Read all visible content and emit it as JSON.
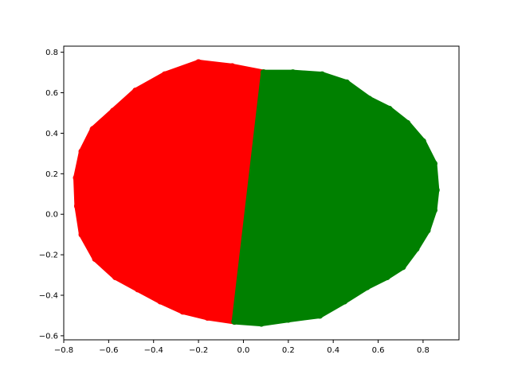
{
  "chart_data": {
    "type": "scatter",
    "title": "",
    "xlabel": "",
    "ylabel": "",
    "xlim": [
      -0.8,
      0.96
    ],
    "ylim": [
      -0.62,
      0.83
    ],
    "xticks": [
      -0.8,
      -0.6,
      -0.4,
      -0.2,
      0.0,
      0.2,
      0.4,
      0.6,
      0.8
    ],
    "xtick_labels": [
      "−0.8",
      "−0.6",
      "−0.4",
      "−0.2",
      "0.0",
      "0.2",
      "0.4",
      "0.6",
      "0.8"
    ],
    "yticks": [
      -0.6,
      -0.4,
      -0.2,
      0.0,
      0.2,
      0.4,
      0.6,
      0.8
    ],
    "ytick_labels": [
      "−0.6",
      "−0.4",
      "−0.2",
      "0.0",
      "0.2",
      "0.4",
      "0.6",
      "0.8"
    ],
    "grid": false,
    "legend": "none",
    "series": [
      {
        "color": "#ff0000",
        "description": "left half of elliptical point cloud",
        "outline": [
          [
            0.09,
            0.7
          ],
          [
            -0.05,
            0.73
          ],
          [
            -0.2,
            0.75
          ],
          [
            -0.35,
            0.69
          ],
          [
            -0.48,
            0.61
          ],
          [
            -0.58,
            0.51
          ],
          [
            -0.67,
            0.42
          ],
          [
            -0.72,
            0.31
          ],
          [
            -0.745,
            0.18
          ],
          [
            -0.74,
            0.04
          ],
          [
            -0.72,
            -0.1
          ],
          [
            -0.66,
            -0.22
          ],
          [
            -0.57,
            -0.31
          ],
          [
            -0.47,
            -0.37
          ],
          [
            -0.37,
            -0.43
          ],
          [
            -0.27,
            -0.48
          ],
          [
            -0.16,
            -0.51
          ],
          [
            -0.04,
            -0.53
          ]
        ]
      },
      {
        "color": "#008000",
        "description": "right half of elliptical point cloud",
        "outline": [
          [
            0.09,
            0.7
          ],
          [
            0.22,
            0.7
          ],
          [
            0.35,
            0.69
          ],
          [
            0.46,
            0.65
          ],
          [
            0.56,
            0.57
          ],
          [
            0.65,
            0.52
          ],
          [
            0.73,
            0.45
          ],
          [
            0.8,
            0.36
          ],
          [
            0.85,
            0.25
          ],
          [
            0.86,
            0.12
          ],
          [
            0.85,
            0.02
          ],
          [
            0.82,
            -0.08
          ],
          [
            0.77,
            -0.17
          ],
          [
            0.71,
            -0.26
          ],
          [
            0.64,
            -0.31
          ],
          [
            0.55,
            -0.36
          ],
          [
            0.45,
            -0.43
          ],
          [
            0.34,
            -0.5
          ],
          [
            0.2,
            -0.52
          ],
          [
            0.08,
            -0.54
          ],
          [
            -0.04,
            -0.53
          ]
        ]
      }
    ]
  }
}
